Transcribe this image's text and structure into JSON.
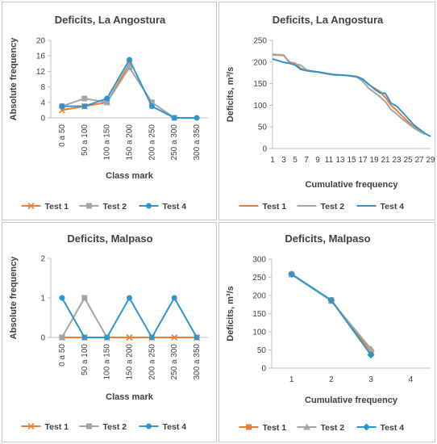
{
  "colors": {
    "test1": "#ED7D31",
    "test2": "#A5A5A5",
    "test4": "#2E96CF",
    "axis": "#BFBFBF",
    "text": "#404040"
  },
  "chart_data": [
    {
      "type": "line",
      "title": "Deficits, La Angostura",
      "xlabel": "Class mark",
      "ylabel": "Absolute frequency",
      "categories": [
        "0 a 50",
        "50 a 100",
        "100 a 150",
        "150 a 200",
        "200 a 250",
        "250 a 300",
        "300 a 350"
      ],
      "ylim": [
        0,
        20
      ],
      "yticks": [
        "0",
        "4",
        "8",
        "12",
        "16",
        "20"
      ],
      "grid": false,
      "legend": "bottom",
      "series": [
        {
          "name": "Test 1",
          "marker": "x",
          "values": [
            2,
            3,
            4,
            14,
            null,
            null,
            null
          ]
        },
        {
          "name": "Test 2",
          "marker": "square",
          "values": [
            3,
            5,
            4,
            13,
            4,
            0,
            null
          ]
        },
        {
          "name": "Test 4",
          "marker": "circle",
          "values": [
            3,
            3,
            5,
            15,
            3,
            0,
            0
          ]
        }
      ]
    },
    {
      "type": "line",
      "title": "Deficits, La Angostura",
      "xlabel": "Cumulative frequency",
      "ylabel": "Deficits, m³/s",
      "categories": [
        "1",
        "2",
        "3",
        "4",
        "5",
        "6",
        "7",
        "8",
        "9",
        "10",
        "11",
        "12",
        "13",
        "14",
        "15",
        "16",
        "17",
        "18",
        "19",
        "20",
        "21",
        "22",
        "23",
        "24",
        "25",
        "26",
        "27",
        "28",
        "29"
      ],
      "xtick_labels": [
        "1",
        "3",
        "5",
        "7",
        "9",
        "11",
        "13",
        "15",
        "17",
        "19",
        "21",
        "23",
        "25",
        "27",
        "29"
      ],
      "ylim": [
        0,
        250
      ],
      "yticks": [
        "0",
        "50",
        "100",
        "150",
        "200",
        "250"
      ],
      "grid": false,
      "legend": "bottom",
      "series": [
        {
          "name": "Test 1",
          "marker": "none",
          "values": [
            217,
            216,
            215,
            200,
            197,
            185,
            180,
            178,
            177,
            175,
            173,
            171,
            170,
            169,
            168,
            166,
            160,
            148,
            140,
            132,
            118,
            100,
            88,
            75,
            62,
            50,
            42,
            null,
            null
          ]
        },
        {
          "name": "Test 2",
          "marker": "none",
          "values": [
            218,
            217,
            216,
            198,
            195,
            193,
            182,
            179,
            177,
            174,
            172,
            171,
            170,
            169,
            167,
            165,
            155,
            140,
            130,
            120,
            108,
            90,
            80,
            68,
            58,
            48,
            40,
            33,
            null
          ]
        },
        {
          "name": "Test 4",
          "marker": "none",
          "values": [
            207,
            203,
            199,
            197,
            193,
            183,
            180,
            179,
            177,
            175,
            172,
            170,
            170,
            169,
            168,
            166,
            160,
            149,
            138,
            129,
            127,
            105,
            98,
            84,
            70,
            55,
            45,
            35,
            28
          ]
        }
      ]
    },
    {
      "type": "line",
      "title": "Deficits, Malpaso",
      "xlabel": "Class mark",
      "ylabel": "Absolute frequency",
      "categories": [
        "0 a 50",
        "50 a 100",
        "100 a 150",
        "150 a 200",
        "200 a 250",
        "250 a 300",
        "300 a 350"
      ],
      "ylim": [
        0,
        2
      ],
      "yticks": [
        "0",
        "1",
        "2"
      ],
      "grid": false,
      "legend": "bottom",
      "series": [
        {
          "name": "Test 1",
          "marker": "x",
          "values": [
            0,
            0,
            0,
            0,
            0,
            0,
            0
          ]
        },
        {
          "name": "Test 2",
          "marker": "square",
          "values": [
            0,
            1,
            0,
            null,
            null,
            null,
            null
          ]
        },
        {
          "name": "Test 4",
          "marker": "circle",
          "values": [
            1,
            0,
            0,
            1,
            0,
            1,
            0
          ]
        }
      ]
    },
    {
      "type": "line",
      "title": "Deficits, Malpaso",
      "xlabel": "Cumulative frequency",
      "ylabel": "Deficits, m³/s",
      "categories": [
        "1",
        "2",
        "3",
        "4"
      ],
      "ylim": [
        0,
        300
      ],
      "yticks": [
        "0",
        "50",
        "100",
        "150",
        "200",
        "250",
        "300"
      ],
      "grid": false,
      "legend": "bottom",
      "series": [
        {
          "name": "Test 1",
          "marker": "square",
          "values": [
            258,
            187,
            45,
            null
          ]
        },
        {
          "name": "Test 2",
          "marker": "triangle",
          "values": [
            258,
            185,
            53,
            null
          ]
        },
        {
          "name": "Test 4",
          "marker": "diamond",
          "values": [
            259,
            187,
            36,
            null
          ]
        }
      ]
    }
  ]
}
